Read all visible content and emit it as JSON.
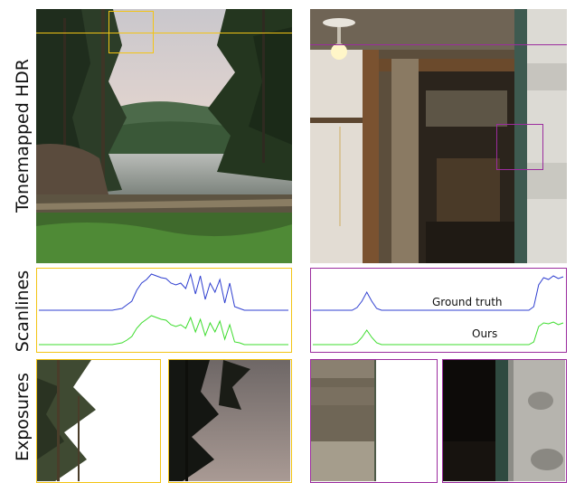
{
  "row_labels": {
    "hdr": "Tonemapped HDR",
    "scanlines": "Scanlines",
    "exposures": "Exposures"
  },
  "legend": {
    "ground_truth": "Ground truth",
    "ours": "Ours"
  },
  "colors": {
    "yellow_frame": "#f3c414",
    "purple_frame": "#9b2c9e",
    "ground_truth_line": "#2f3fd0",
    "ours_line": "#3cdc2c"
  },
  "chart_data": [
    {
      "type": "line",
      "panel": "left-scanline",
      "series": [
        {
          "name": "Ground truth",
          "values": [
            0,
            0,
            0,
            0,
            0,
            0,
            0,
            0,
            0,
            0,
            0,
            0,
            0,
            0,
            0,
            0,
            1,
            2,
            6,
            10,
            22,
            30,
            34,
            40,
            38,
            36,
            35,
            30,
            28,
            30,
            24,
            40,
            18,
            38,
            12,
            30,
            20,
            34,
            8,
            30,
            4,
            2,
            0,
            0,
            0,
            0,
            0,
            0,
            0,
            0,
            0,
            0
          ]
        },
        {
          "name": "Ours",
          "values": [
            0,
            0,
            0,
            0,
            0,
            0,
            0,
            0,
            0,
            0,
            0,
            0,
            0,
            0,
            0,
            0,
            1,
            2,
            5,
            9,
            18,
            24,
            28,
            32,
            30,
            28,
            27,
            22,
            20,
            22,
            18,
            30,
            14,
            28,
            10,
            24,
            14,
            26,
            6,
            22,
            3,
            2,
            0,
            0,
            0,
            0,
            0,
            0,
            0,
            0,
            0,
            0
          ]
        }
      ]
    },
    {
      "type": "line",
      "panel": "right-scanline",
      "series": [
        {
          "name": "Ground truth",
          "values": [
            0,
            0,
            0,
            0,
            0,
            0,
            0,
            0,
            0,
            3,
            10,
            20,
            10,
            2,
            0,
            0,
            0,
            0,
            0,
            0,
            0,
            0,
            0,
            0,
            0,
            0,
            0,
            0,
            0,
            0,
            0,
            0,
            0,
            0,
            0,
            0,
            0,
            0,
            0,
            0,
            0,
            0,
            0,
            0,
            0,
            4,
            28,
            36,
            34,
            38,
            35,
            37
          ]
        },
        {
          "name": "Ours",
          "values": [
            0,
            0,
            0,
            0,
            0,
            0,
            0,
            0,
            0,
            2,
            8,
            16,
            8,
            2,
            0,
            0,
            0,
            0,
            0,
            0,
            0,
            0,
            0,
            0,
            0,
            0,
            0,
            0,
            0,
            0,
            0,
            0,
            0,
            0,
            0,
            0,
            0,
            0,
            0,
            0,
            0,
            0,
            0,
            0,
            0,
            3,
            20,
            24,
            23,
            25,
            22,
            24
          ]
        }
      ]
    }
  ]
}
